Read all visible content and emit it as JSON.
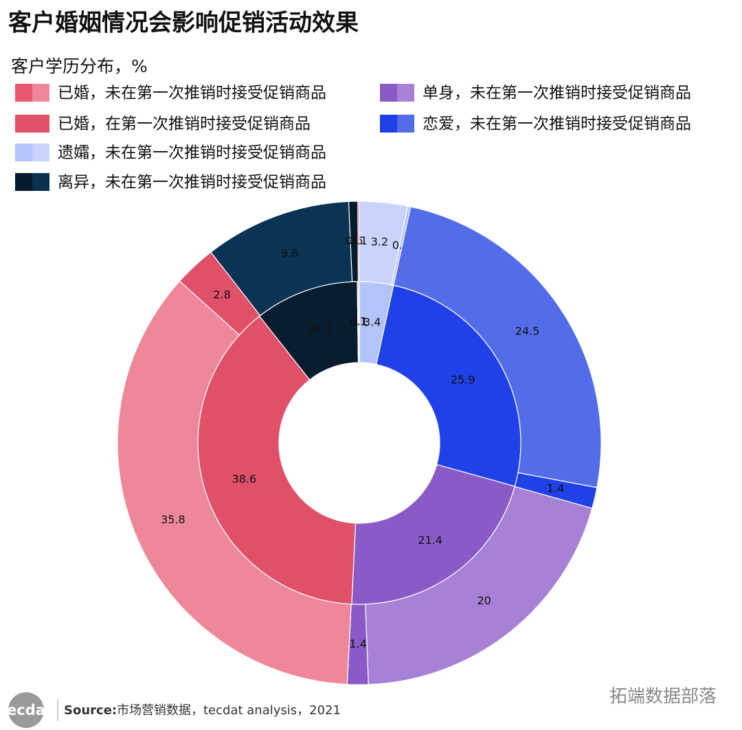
{
  "chart_data": {
    "type": "sunburst",
    "title": "客户婚姻情况会影响促销活动效果",
    "subtitle": "客户学历分布，%",
    "legend": [
      {
        "name": "已婚，未在第一次推销时接受促销商品",
        "colors": [
          "#e8566f",
          "#ee8799"
        ]
      },
      {
        "name": "单身，未在第一次推销时接受促销商品",
        "colors": [
          "#8a5bc7",
          "#a681d6"
        ]
      },
      {
        "name": "已婚，在第一次推销时接受促销商品",
        "colors": [
          "#e05068",
          "#e05068"
        ]
      },
      {
        "name": "恋爱，未在第一次推销时接受促销商品",
        "colors": [
          "#2040e8",
          "#536de9"
        ]
      },
      {
        "name": "遗孀，未在第一次推销时接受促销商品",
        "colors": [
          "#b3c4fb",
          "#c9d4fd"
        ]
      },
      {
        "name": "离异，未在第一次推销时接受促销商品",
        "colors": [
          "#061a2e",
          "#0b2f4f"
        ]
      }
    ],
    "rings": [
      {
        "values": [
          3.4,
          25.9,
          21.4,
          38.6,
          10.4,
          0.1,
          0.1
        ],
        "colors": [
          "#b3c4fb",
          "#2040e8",
          "#8a5bc7",
          "#e05068",
          "#081c30",
          "#e05068",
          "#2040e8"
        ]
      },
      {
        "values": [
          3.2,
          0.2,
          24.5,
          1.4,
          20,
          1.4,
          35.8,
          2.8,
          9.8,
          0.6,
          0.1
        ],
        "colors": [
          "#c9d4fd",
          "#b3c4fb",
          "#536de9",
          "#2040e8",
          "#a681d6",
          "#8a5bc7",
          "#ee8799",
          "#e05068",
          "#0b3354",
          "#061a2e",
          "#e05068"
        ]
      }
    ],
    "logo": "tecdat",
    "source_label": "Source:",
    "source": "市场营销数据，tecdat analysis，2021",
    "watermark": "拓端数据部落"
  }
}
